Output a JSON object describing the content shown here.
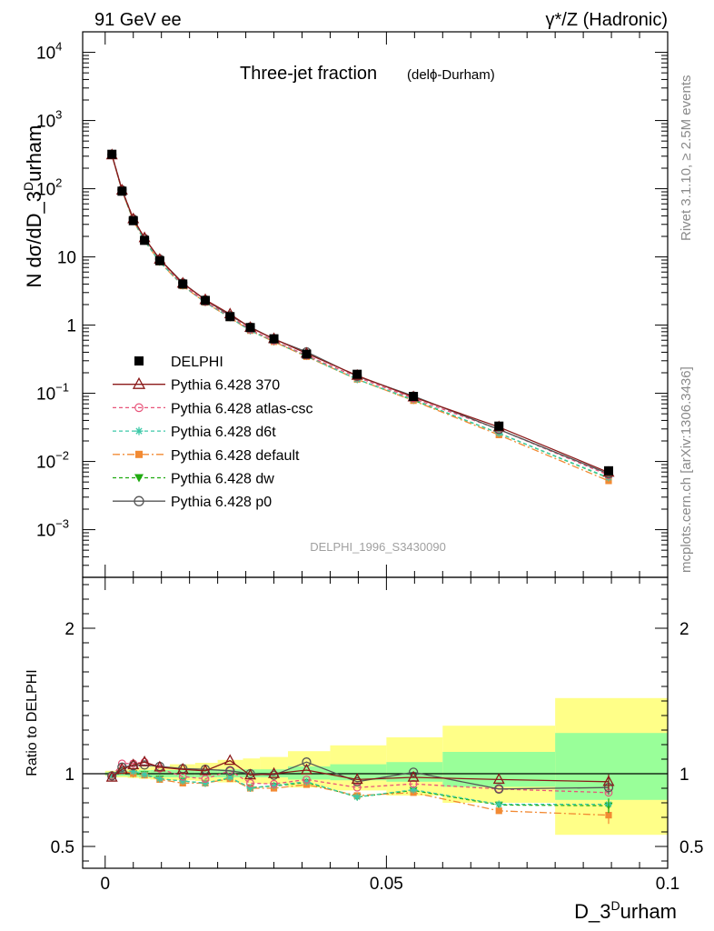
{
  "header": {
    "left": "91 GeV ee",
    "right": "γ*/Z (Hadronic)"
  },
  "side": {
    "rivet": "Rivet 3.1.10, ≥ 2.5M events",
    "mcplots": "mcplots.cern.ch [arXiv:1306.3436]"
  },
  "colors": {
    "DELPHI": "#000000",
    "p370": "#8b1a1a",
    "atlas": "#e8547a",
    "d6t": "#3cc9a8",
    "default": "#f28a33",
    "dw": "#1faa10",
    "p0": "#555555",
    "band_inner": "#99ff99",
    "band_outer": "#ffff88"
  },
  "chart_data": [
    {
      "type": "line",
      "title": "Three-jet fraction",
      "subtitle": "(delϕ-Durham)",
      "ylabel": "N dσ/dD_3^Durham",
      "yscale": "log",
      "ylim": [
        0.0002,
        20000
      ],
      "xlim": [
        -0.004,
        0.1
      ],
      "y_ticks": [
        {
          "value": 10000,
          "base": "10",
          "exp": "4"
        },
        {
          "value": 1000,
          "base": "10",
          "exp": "3"
        },
        {
          "value": 100,
          "base": "10",
          "exp": "2"
        },
        {
          "value": 10,
          "base": "10",
          "exp": ""
        },
        {
          "value": 1,
          "base": "1",
          "exp": ""
        },
        {
          "value": 0.1,
          "base": "10",
          "exp": "−1"
        },
        {
          "value": 0.01,
          "base": "10",
          "exp": "−2"
        },
        {
          "value": 0.001,
          "base": "10",
          "exp": "−3"
        }
      ],
      "watermark": "DELPHI_1996_S3430090",
      "x": [
        0.0012,
        0.003,
        0.005,
        0.007,
        0.0097,
        0.0138,
        0.0178,
        0.0222,
        0.0258,
        0.03,
        0.0358,
        0.0448,
        0.0548,
        0.07,
        0.0895
      ],
      "series": [
        {
          "name": "DELPHI",
          "key": "DELPHI",
          "marker": "square",
          "dash": "",
          "values": [
            320,
            92,
            34,
            17.5,
            8.8,
            4.0,
            2.3,
            1.33,
            0.92,
            0.63,
            0.375,
            0.19,
            0.09,
            0.033,
            0.0073
          ]
        },
        {
          "name": "Pythia 6.428 370",
          "key": "p370",
          "marker": "triangle",
          "dash": "",
          "values": [
            312,
            95,
            36,
            19.0,
            9.2,
            4.1,
            2.35,
            1.45,
            0.92,
            0.63,
            0.385,
            0.182,
            0.088,
            0.032,
            0.0069
          ]
        },
        {
          "name": "Pythia 6.428 atlas-csc",
          "key": "atlas",
          "marker": "circle",
          "dash": "4,3",
          "values": [
            315,
            98,
            36.5,
            18.9,
            9.1,
            3.9,
            2.2,
            1.35,
            0.86,
            0.59,
            0.36,
            0.172,
            0.084,
            0.0295,
            0.0063
          ]
        },
        {
          "name": "Pythia 6.428 d6t",
          "key": "d6t",
          "marker": "star",
          "dash": "4,3",
          "values": [
            313,
            94,
            34.5,
            17.4,
            8.5,
            3.8,
            2.15,
            1.3,
            0.83,
            0.58,
            0.355,
            0.16,
            0.081,
            0.026,
            0.0058
          ]
        },
        {
          "name": "Pythia 6.428 default",
          "key": "default",
          "marker": "filledsquare",
          "dash": "8,3,2,3",
          "values": [
            312,
            94,
            34,
            17.3,
            8.4,
            3.75,
            2.15,
            1.28,
            0.83,
            0.57,
            0.345,
            0.16,
            0.078,
            0.0245,
            0.0052
          ]
        },
        {
          "name": "Pythia 6.428 dw",
          "key": "dw",
          "marker": "downtriangle",
          "dash": "4,3",
          "values": [
            313,
            94,
            34,
            17.3,
            8.45,
            3.8,
            2.15,
            1.29,
            0.83,
            0.57,
            0.35,
            0.16,
            0.079,
            0.026,
            0.0057
          ]
        },
        {
          "name": "Pythia 6.428 p0",
          "key": "p0",
          "marker": "opencircle",
          "dash": "",
          "values": [
            316,
            96,
            36,
            18.6,
            9.3,
            4.15,
            2.35,
            1.38,
            0.94,
            0.62,
            0.405,
            0.178,
            0.091,
            0.0295,
            0.0066
          ]
        }
      ],
      "legend_position": "center-left"
    },
    {
      "type": "line",
      "ylabel": "Ratio to DELPHI",
      "xlabel": "D_3^Durham",
      "ylim": [
        0.35,
        2.35
      ],
      "x_ticks": [
        0,
        0.05,
        0.1
      ],
      "x_tick_labels": [
        "0",
        "0.05",
        "0.1"
      ],
      "y_ticks": [
        0.5,
        1,
        2
      ],
      "y_tick_labels": [
        "0.5",
        "1",
        "2"
      ],
      "reference_line": 1,
      "bands": {
        "edges": [
          0,
          0.002,
          0.004,
          0.006,
          0.008,
          0.0115,
          0.016,
          0.02,
          0.0245,
          0.0275,
          0.0325,
          0.04,
          0.05,
          0.06,
          0.08,
          0.1
        ],
        "inner": [
          [
            0.99,
            1.01
          ],
          [
            0.985,
            1.015
          ],
          [
            0.98,
            1.02
          ],
          [
            0.975,
            1.025
          ],
          [
            0.975,
            1.025
          ],
          [
            0.975,
            1.025
          ],
          [
            0.975,
            1.025
          ],
          [
            0.975,
            1.03
          ],
          [
            0.975,
            1.03
          ],
          [
            0.975,
            1.03
          ],
          [
            0.96,
            1.05
          ],
          [
            0.955,
            1.065
          ],
          [
            0.945,
            1.08
          ],
          [
            0.91,
            1.15
          ],
          [
            0.82,
            1.28
          ]
        ],
        "outer": [
          [
            0.985,
            1.02
          ],
          [
            0.975,
            1.03
          ],
          [
            0.97,
            1.04
          ],
          [
            0.965,
            1.045
          ],
          [
            0.96,
            1.05
          ],
          [
            0.955,
            1.065
          ],
          [
            0.95,
            1.075
          ],
          [
            0.94,
            1.095
          ],
          [
            0.935,
            1.105
          ],
          [
            0.93,
            1.115
          ],
          [
            0.905,
            1.155
          ],
          [
            0.885,
            1.195
          ],
          [
            0.85,
            1.25
          ],
          [
            0.8,
            1.33
          ],
          [
            0.58,
            1.52
          ]
        ]
      },
      "x": [
        0.0012,
        0.003,
        0.005,
        0.007,
        0.0097,
        0.0138,
        0.0178,
        0.0222,
        0.0258,
        0.03,
        0.0358,
        0.0448,
        0.0548,
        0.07,
        0.0895
      ],
      "series": [
        {
          "name": "DELPHI",
          "key": "DELPHI",
          "marker": "none",
          "dash": "",
          "values": [
            1,
            1,
            1,
            1,
            1,
            1,
            1,
            1,
            1,
            1,
            1,
            1,
            1,
            1,
            1
          ]
        },
        {
          "name": "Pythia 6.428 370",
          "key": "p370",
          "marker": "triangle",
          "dash": "",
          "values": [
            0.975,
            1.03,
            1.06,
            1.08,
            1.045,
            1.03,
            1.02,
            1.09,
            0.99,
            1.0,
            1.025,
            0.96,
            0.975,
            0.96,
            0.945
          ]
        },
        {
          "name": "Pythia 6.428 atlas-csc",
          "key": "atlas",
          "marker": "circle",
          "dash": "4,3",
          "values": [
            0.985,
            1.07,
            1.07,
            1.08,
            1.035,
            0.98,
            0.965,
            1.02,
            0.935,
            0.93,
            0.96,
            0.905,
            0.93,
            0.895,
            0.87
          ]
        },
        {
          "name": "Pythia 6.428 d6t",
          "key": "d6t",
          "marker": "star",
          "dash": "4,3",
          "values": [
            0.985,
            1.02,
            1.015,
            0.995,
            0.965,
            0.95,
            0.935,
            0.975,
            0.9,
            0.92,
            0.945,
            0.84,
            0.89,
            0.79,
            0.79
          ]
        },
        {
          "name": "Pythia 6.428 default",
          "key": "default",
          "marker": "filledsquare",
          "dash": "8,3,2,3",
          "values": [
            0.985,
            1.02,
            1.0,
            0.99,
            0.96,
            0.935,
            0.935,
            0.965,
            0.9,
            0.9,
            0.925,
            0.85,
            0.87,
            0.745,
            0.715
          ]
        },
        {
          "name": "Pythia 6.428 dw",
          "key": "dw",
          "marker": "downtriangle",
          "dash": "4,3",
          "values": [
            0.985,
            1.02,
            1.0,
            0.995,
            0.965,
            0.95,
            0.935,
            0.97,
            0.905,
            0.915,
            0.94,
            0.84,
            0.885,
            0.785,
            0.78
          ]
        },
        {
          "name": "Pythia 6.428 p0",
          "key": "p0",
          "marker": "opencircle",
          "dash": "",
          "values": [
            0.985,
            1.045,
            1.055,
            1.06,
            1.05,
            1.035,
            1.03,
            1.02,
            1.0,
            0.99,
            1.08,
            0.945,
            1.01,
            0.895,
            0.905
          ]
        }
      ]
    }
  ]
}
